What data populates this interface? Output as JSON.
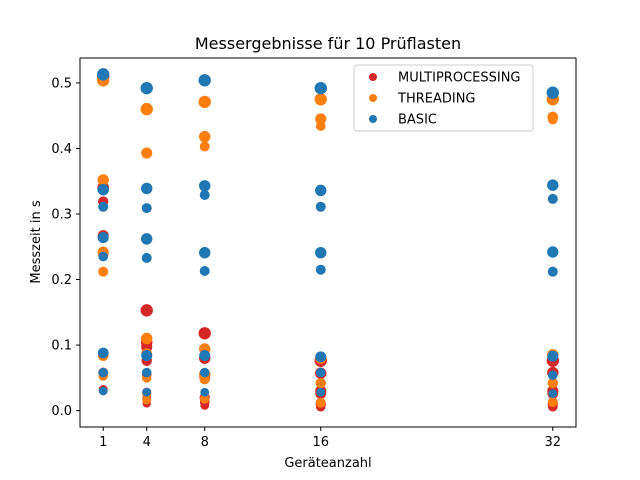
{
  "chart_data": {
    "type": "scatter",
    "title": "Messergebnisse für 10 Prüflasten",
    "xlabel": "Geräteanzahl",
    "ylabel": "Messzeit in s",
    "xticks": [
      1,
      4,
      8,
      16,
      32
    ],
    "yticks": [
      0.0,
      0.1,
      0.2,
      0.3,
      0.4,
      0.5
    ],
    "ytick_labels": [
      "0.0",
      "0.1",
      "0.2",
      "0.3",
      "0.4",
      "0.5"
    ],
    "xlim": [
      -0.6,
      33.6
    ],
    "ylim": [
      -0.025,
      0.538
    ],
    "grid": false,
    "legend_position": "top-right",
    "series": [
      {
        "name": "MULTIPROCESSING",
        "color": "#d62728",
        "points": [
          {
            "x": 1,
            "y": 0.51,
            "s": 1.0
          },
          {
            "x": 1,
            "y": 0.34,
            "s": 0.9
          },
          {
            "x": 1,
            "y": 0.319,
            "s": 0.7
          },
          {
            "x": 1,
            "y": 0.267,
            "s": 0.8
          },
          {
            "x": 1,
            "y": 0.24,
            "s": 0.75
          },
          {
            "x": 1,
            "y": 0.084,
            "s": 0.7
          },
          {
            "x": 1,
            "y": 0.058,
            "s": 0.65
          },
          {
            "x": 1,
            "y": 0.032,
            "s": 0.55
          },
          {
            "x": 4,
            "y": 0.153,
            "s": 1.0
          },
          {
            "x": 4,
            "y": 0.104,
            "s": 0.85
          },
          {
            "x": 4,
            "y": 0.097,
            "s": 0.8
          },
          {
            "x": 4,
            "y": 0.076,
            "s": 0.7
          },
          {
            "x": 4,
            "y": 0.055,
            "s": 0.6
          },
          {
            "x": 4,
            "y": 0.028,
            "s": 0.55
          },
          {
            "x": 4,
            "y": 0.019,
            "s": 0.5
          },
          {
            "x": 4,
            "y": 0.011,
            "s": 0.45
          },
          {
            "x": 8,
            "y": 0.118,
            "s": 1.0
          },
          {
            "x": 8,
            "y": 0.08,
            "s": 0.85
          },
          {
            "x": 8,
            "y": 0.055,
            "s": 0.8
          },
          {
            "x": 8,
            "y": 0.051,
            "s": 0.75
          },
          {
            "x": 8,
            "y": 0.02,
            "s": 0.7
          },
          {
            "x": 8,
            "y": 0.013,
            "s": 0.6
          },
          {
            "x": 8,
            "y": 0.008,
            "s": 0.5
          },
          {
            "x": 16,
            "y": 0.076,
            "s": 1.0
          },
          {
            "x": 16,
            "y": 0.057,
            "s": 0.85
          },
          {
            "x": 16,
            "y": 0.03,
            "s": 0.8
          },
          {
            "x": 16,
            "y": 0.026,
            "s": 0.75
          },
          {
            "x": 16,
            "y": 0.01,
            "s": 0.7
          },
          {
            "x": 16,
            "y": 0.006,
            "s": 0.6
          },
          {
            "x": 32,
            "y": 0.076,
            "s": 1.0
          },
          {
            "x": 32,
            "y": 0.058,
            "s": 0.85
          },
          {
            "x": 32,
            "y": 0.03,
            "s": 0.8
          },
          {
            "x": 32,
            "y": 0.026,
            "s": 0.75
          },
          {
            "x": 32,
            "y": 0.01,
            "s": 0.7
          },
          {
            "x": 32,
            "y": 0.006,
            "s": 0.6
          }
        ]
      },
      {
        "name": "THREADING",
        "color": "#ff7f0e",
        "points": [
          {
            "x": 1,
            "y": 0.504,
            "s": 1.0
          },
          {
            "x": 1,
            "y": 0.352,
            "s": 0.85
          },
          {
            "x": 1,
            "y": 0.242,
            "s": 0.8
          },
          {
            "x": 1,
            "y": 0.212,
            "s": 0.65
          },
          {
            "x": 1,
            "y": 0.084,
            "s": 0.75
          },
          {
            "x": 1,
            "y": 0.053,
            "s": 0.6
          },
          {
            "x": 1,
            "y": 0.03,
            "s": 0.5
          },
          {
            "x": 4,
            "y": 0.46,
            "s": 1.0
          },
          {
            "x": 4,
            "y": 0.393,
            "s": 0.8
          },
          {
            "x": 4,
            "y": 0.11,
            "s": 0.85
          },
          {
            "x": 4,
            "y": 0.087,
            "s": 0.75
          },
          {
            "x": 4,
            "y": 0.05,
            "s": 0.6
          },
          {
            "x": 4,
            "y": 0.026,
            "s": 0.55
          },
          {
            "x": 4,
            "y": 0.016,
            "s": 0.5
          },
          {
            "x": 8,
            "y": 0.471,
            "s": 1.0
          },
          {
            "x": 8,
            "y": 0.418,
            "s": 0.85
          },
          {
            "x": 8,
            "y": 0.403,
            "s": 0.65
          },
          {
            "x": 8,
            "y": 0.094,
            "s": 0.85
          },
          {
            "x": 8,
            "y": 0.056,
            "s": 0.8
          },
          {
            "x": 8,
            "y": 0.048,
            "s": 0.7
          },
          {
            "x": 8,
            "y": 0.018,
            "s": 0.6
          },
          {
            "x": 16,
            "y": 0.475,
            "s": 1.0
          },
          {
            "x": 16,
            "y": 0.445,
            "s": 0.8
          },
          {
            "x": 16,
            "y": 0.434,
            "s": 0.6
          },
          {
            "x": 16,
            "y": 0.08,
            "s": 0.85
          },
          {
            "x": 16,
            "y": 0.042,
            "s": 0.7
          },
          {
            "x": 16,
            "y": 0.012,
            "s": 0.65
          },
          {
            "x": 32,
            "y": 0.475,
            "s": 1.0
          },
          {
            "x": 32,
            "y": 0.448,
            "s": 0.75
          },
          {
            "x": 32,
            "y": 0.444,
            "s": 0.6
          },
          {
            "x": 32,
            "y": 0.085,
            "s": 0.85
          },
          {
            "x": 32,
            "y": 0.042,
            "s": 0.7
          },
          {
            "x": 32,
            "y": 0.013,
            "s": 0.65
          }
        ]
      },
      {
        "name": "BASIC",
        "color": "#1f77b4",
        "points": [
          {
            "x": 1,
            "y": 0.513,
            "s": 1.0
          },
          {
            "x": 1,
            "y": 0.337,
            "s": 0.85
          },
          {
            "x": 1,
            "y": 0.311,
            "s": 0.65
          },
          {
            "x": 1,
            "y": 0.264,
            "s": 0.8
          },
          {
            "x": 1,
            "y": 0.235,
            "s": 0.6
          },
          {
            "x": 1,
            "y": 0.088,
            "s": 0.75
          },
          {
            "x": 1,
            "y": 0.058,
            "s": 0.6
          },
          {
            "x": 1,
            "y": 0.03,
            "s": 0.5
          },
          {
            "x": 4,
            "y": 0.492,
            "s": 1.0
          },
          {
            "x": 4,
            "y": 0.339,
            "s": 0.85
          },
          {
            "x": 4,
            "y": 0.309,
            "s": 0.65
          },
          {
            "x": 4,
            "y": 0.262,
            "s": 0.85
          },
          {
            "x": 4,
            "y": 0.233,
            "s": 0.65
          },
          {
            "x": 4,
            "y": 0.084,
            "s": 0.8
          },
          {
            "x": 4,
            "y": 0.058,
            "s": 0.6
          },
          {
            "x": 4,
            "y": 0.028,
            "s": 0.5
          },
          {
            "x": 8,
            "y": 0.504,
            "s": 1.0
          },
          {
            "x": 8,
            "y": 0.343,
            "s": 0.85
          },
          {
            "x": 8,
            "y": 0.329,
            "s": 0.65
          },
          {
            "x": 8,
            "y": 0.241,
            "s": 0.85
          },
          {
            "x": 8,
            "y": 0.213,
            "s": 0.65
          },
          {
            "x": 8,
            "y": 0.084,
            "s": 0.8
          },
          {
            "x": 8,
            "y": 0.058,
            "s": 0.6
          },
          {
            "x": 8,
            "y": 0.028,
            "s": 0.5
          },
          {
            "x": 16,
            "y": 0.492,
            "s": 1.0
          },
          {
            "x": 16,
            "y": 0.336,
            "s": 0.85
          },
          {
            "x": 16,
            "y": 0.311,
            "s": 0.65
          },
          {
            "x": 16,
            "y": 0.241,
            "s": 0.85
          },
          {
            "x": 16,
            "y": 0.215,
            "s": 0.65
          },
          {
            "x": 16,
            "y": 0.082,
            "s": 0.8
          },
          {
            "x": 16,
            "y": 0.058,
            "s": 0.6
          },
          {
            "x": 16,
            "y": 0.028,
            "s": 0.5
          },
          {
            "x": 32,
            "y": 0.485,
            "s": 1.0
          },
          {
            "x": 32,
            "y": 0.344,
            "s": 0.85
          },
          {
            "x": 32,
            "y": 0.323,
            "s": 0.65
          },
          {
            "x": 32,
            "y": 0.242,
            "s": 0.85
          },
          {
            "x": 32,
            "y": 0.212,
            "s": 0.65
          },
          {
            "x": 32,
            "y": 0.083,
            "s": 0.8
          },
          {
            "x": 32,
            "y": 0.054,
            "s": 0.6
          },
          {
            "x": 32,
            "y": 0.026,
            "s": 0.5
          }
        ]
      }
    ]
  }
}
